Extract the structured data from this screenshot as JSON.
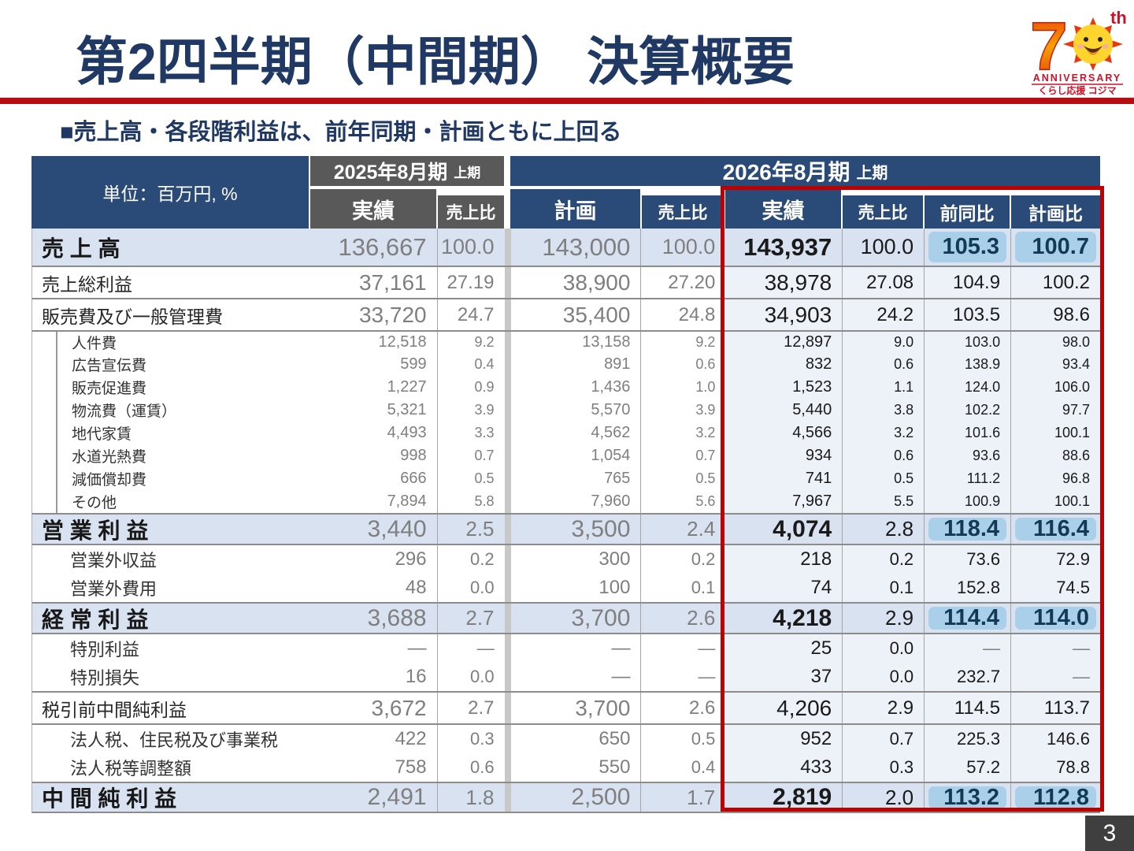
{
  "title": "第2四半期（中間期） 決算概要",
  "subtitle": "■売上高・各段階利益は、前年同期・計画ともに上回る",
  "page_number": "3",
  "logo": {
    "big_numeral": "7",
    "th": "th",
    "anniversary": "ANNIVERSARY",
    "tagline": "くらし応援 コジマ"
  },
  "table": {
    "unit_label": "単位：百万円, %",
    "groups": [
      {
        "label": "2025年8月期",
        "suffix": "上期"
      },
      {
        "label": "2026年8月期",
        "suffix": "上期"
      }
    ],
    "columns": [
      "実績",
      "売上比",
      "計画",
      "売上比",
      "実績",
      "売上比",
      "前同比",
      "計画比"
    ],
    "rows": [
      {
        "label": "売 上 高",
        "kind": "main",
        "hl": true,
        "v": [
          "136,667",
          "100.0",
          "143,000",
          "100.0",
          "143,937",
          "100.0",
          "105.3",
          "100.7"
        ]
      },
      {
        "label": "売上総利益",
        "kind": "mid",
        "v": [
          "37,161",
          "27.19",
          "38,900",
          "27.20",
          "38,978",
          "27.08",
          "104.9",
          "100.2"
        ]
      },
      {
        "label": "販売費及び一般管理費",
        "kind": "mid",
        "v": [
          "33,720",
          "24.7",
          "35,400",
          "24.8",
          "34,903",
          "24.2",
          "103.5",
          "98.6"
        ]
      },
      {
        "label": "人件費",
        "kind": "sub",
        "v": [
          "12,518",
          "9.2",
          "13,158",
          "9.2",
          "12,897",
          "9.0",
          "103.0",
          "98.0"
        ]
      },
      {
        "label": "広告宣伝費",
        "kind": "sub",
        "v": [
          "599",
          "0.4",
          "891",
          "0.6",
          "832",
          "0.6",
          "138.9",
          "93.4"
        ]
      },
      {
        "label": "販売促進費",
        "kind": "sub",
        "v": [
          "1,227",
          "0.9",
          "1,436",
          "1.0",
          "1,523",
          "1.1",
          "124.0",
          "106.0"
        ]
      },
      {
        "label": "物流費（運賃）",
        "kind": "sub",
        "v": [
          "5,321",
          "3.9",
          "5,570",
          "3.9",
          "5,440",
          "3.8",
          "102.2",
          "97.7"
        ]
      },
      {
        "label": "地代家賃",
        "kind": "sub",
        "v": [
          "4,493",
          "3.3",
          "4,562",
          "3.2",
          "4,566",
          "3.2",
          "101.6",
          "100.1"
        ]
      },
      {
        "label": "水道光熱費",
        "kind": "sub",
        "v": [
          "998",
          "0.7",
          "1,054",
          "0.7",
          "934",
          "0.6",
          "93.6",
          "88.6"
        ]
      },
      {
        "label": "減価償却費",
        "kind": "sub",
        "v": [
          "666",
          "0.5",
          "765",
          "0.5",
          "741",
          "0.5",
          "111.2",
          "96.8"
        ]
      },
      {
        "label": "その他",
        "kind": "sub",
        "v": [
          "7,894",
          "5.8",
          "7,960",
          "5.6",
          "7,967",
          "5.5",
          "100.9",
          "100.1"
        ]
      },
      {
        "label": "営 業 利 益",
        "kind": "total",
        "hl": true,
        "v": [
          "3,440",
          "2.5",
          "3,500",
          "2.4",
          "4,074",
          "2.8",
          "118.4",
          "116.4"
        ]
      },
      {
        "label": "営業外収益",
        "kind": "detail",
        "v": [
          "296",
          "0.2",
          "300",
          "0.2",
          "218",
          "0.2",
          "73.6",
          "72.9"
        ]
      },
      {
        "label": "営業外費用",
        "kind": "detail",
        "v": [
          "48",
          "0.0",
          "100",
          "0.1",
          "74",
          "0.1",
          "152.8",
          "74.5"
        ]
      },
      {
        "label": "経 常 利 益",
        "kind": "total",
        "hl": true,
        "v": [
          "3,688",
          "2.7",
          "3,700",
          "2.6",
          "4,218",
          "2.9",
          "114.4",
          "114.0"
        ]
      },
      {
        "label": "特別利益",
        "kind": "detail",
        "v": [
          "―",
          "―",
          "―",
          "―",
          "25",
          "0.0",
          "―",
          "―"
        ]
      },
      {
        "label": "特別損失",
        "kind": "detail",
        "v": [
          "16",
          "0.0",
          "―",
          "―",
          "37",
          "0.0",
          "232.7",
          "―"
        ]
      },
      {
        "label": "税引前中間純利益",
        "kind": "mid",
        "v": [
          "3,672",
          "2.7",
          "3,700",
          "2.6",
          "4,206",
          "2.9",
          "114.5",
          "113.7"
        ]
      },
      {
        "label": "法人税、住民税及び事業税",
        "kind": "detail",
        "v": [
          "422",
          "0.3",
          "650",
          "0.5",
          "952",
          "0.7",
          "225.3",
          "146.6"
        ]
      },
      {
        "label": "法人税等調整額",
        "kind": "detail",
        "v": [
          "758",
          "0.6",
          "550",
          "0.4",
          "433",
          "0.3",
          "57.2",
          "78.8"
        ]
      },
      {
        "label": "中 間 純 利 益",
        "kind": "final",
        "hl": true,
        "v": [
          "2,491",
          "1.8",
          "2,500",
          "1.7",
          "2,819",
          "2.0",
          "113.2",
          "112.8"
        ]
      }
    ]
  }
}
